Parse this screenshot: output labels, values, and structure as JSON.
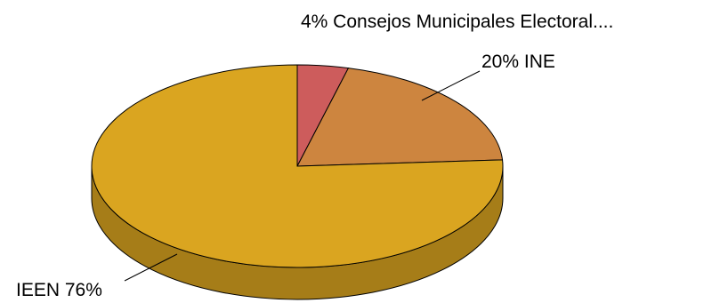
{
  "chart_data": {
    "type": "pie",
    "style": "3d",
    "start_angle": "12 o'clock",
    "direction": "clockwise",
    "slices": [
      {
        "name": "Consejos Municipales Electoral....",
        "value": 4,
        "pct_label": "4%",
        "color": "#cd5c5c"
      },
      {
        "name": "INE",
        "value": 20,
        "pct_label": "20%",
        "color": "#cd853f"
      },
      {
        "name": "IEEN",
        "value": 76,
        "pct_label": "76%",
        "color": "#daa520"
      }
    ]
  }
}
